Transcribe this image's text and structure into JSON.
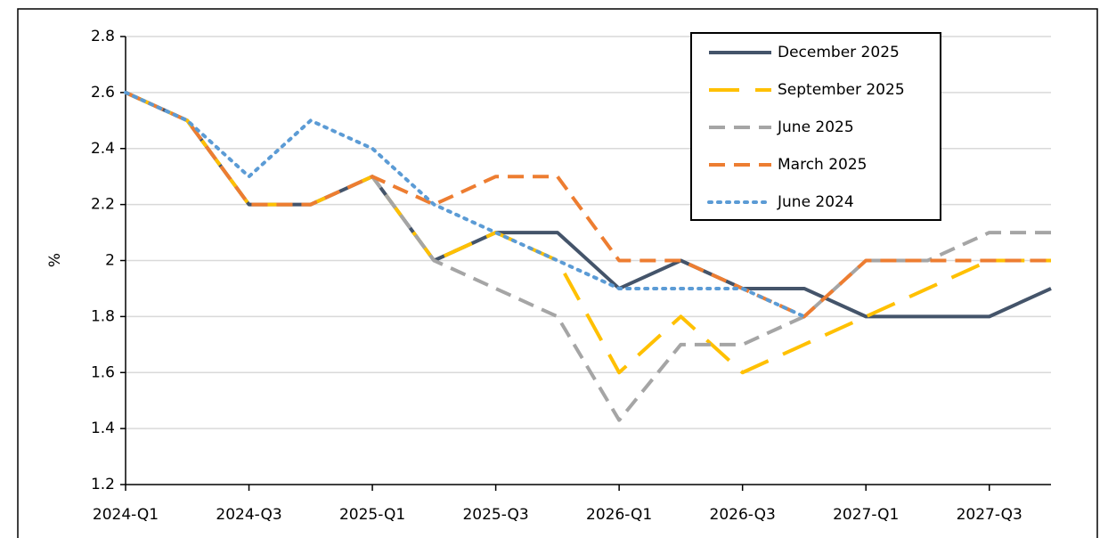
{
  "chart_data": {
    "type": "line",
    "y_label": "%",
    "categories": [
      "2024-Q1",
      null,
      "2024-Q3",
      null,
      "2025-Q1",
      null,
      "2025-Q3",
      null,
      "2026-Q1",
      null,
      "2026-Q3",
      null,
      "2027-Q1",
      null,
      "2027-Q3",
      null
    ],
    "series": [
      {
        "name": "December 2025",
        "color": "#44546a",
        "dash": "solid",
        "values": [
          2.6,
          2.5,
          2.2,
          2.2,
          2.3,
          2.0,
          2.1,
          2.1,
          1.9,
          2.0,
          1.9,
          1.9,
          1.8,
          1.8,
          1.8,
          1.9
        ]
      },
      {
        "name": "September 2025",
        "color": "#ffc000",
        "dash": "long-dash",
        "values": [
          2.6,
          2.5,
          2.2,
          2.2,
          2.3,
          2.0,
          2.1,
          2.0,
          1.6,
          1.8,
          1.6,
          1.7,
          1.8,
          1.9,
          2.0,
          2.0
        ]
      },
      {
        "name": "June 2025",
        "color": "#a5a5a5",
        "dash": "dash",
        "values": [
          2.6,
          2.5,
          2.2,
          2.2,
          2.3,
          2.0,
          1.9,
          1.8,
          1.43,
          1.7,
          1.7,
          1.8,
          2.0,
          2.0,
          2.1,
          2.1
        ]
      },
      {
        "name": "March 2025",
        "color": "#ed7d31",
        "dash": "dash",
        "values": [
          2.6,
          2.5,
          2.2,
          2.2,
          2.3,
          2.2,
          2.3,
          2.3,
          2.0,
          2.0,
          1.9,
          1.8,
          2.0,
          2.0,
          2.0,
          2.0
        ]
      },
      {
        "name": "June 2024",
        "color": "#5b9bd5",
        "dash": "dot",
        "values": [
          2.6,
          2.5,
          2.3,
          2.5,
          2.4,
          2.2,
          2.1,
          2.0,
          1.9,
          1.9,
          1.9,
          1.8,
          null,
          null,
          null,
          null
        ]
      }
    ],
    "ylim": [
      1.2,
      2.8
    ],
    "yticks": [
      {
        "value": 1.2,
        "label": "1.2"
      },
      {
        "value": 1.4,
        "label": "1.4"
      },
      {
        "value": 1.6,
        "label": "1.6"
      },
      {
        "value": 1.8,
        "label": "1.8"
      },
      2,
      {
        "value": 2.2,
        "label": "2.2"
      },
      {
        "value": 2.4,
        "label": "2.4"
      },
      {
        "value": 2.6,
        "label": "2.6"
      },
      {
        "value": 2.8,
        "label": "2.8"
      }
    ],
    "grid": true,
    "legend": "top-right"
  }
}
